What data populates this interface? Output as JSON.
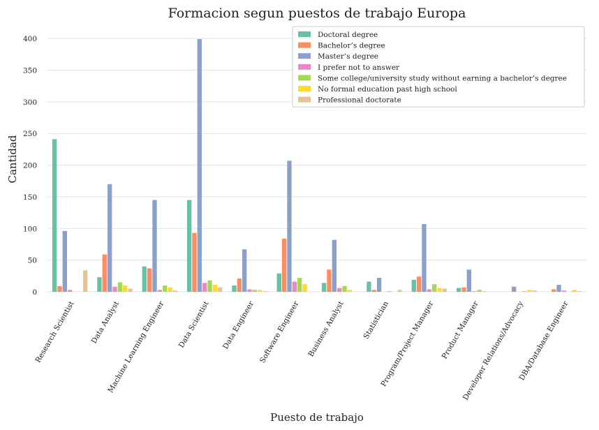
{
  "chart_data": {
    "type": "bar",
    "title": "Formacion segun puestos de trabajo Europa",
    "xlabel": "Puesto de trabajo",
    "ylabel": "Cantidad",
    "ylim": [
      0,
      420
    ],
    "yticks": [
      0,
      50,
      100,
      150,
      200,
      250,
      300,
      350,
      400
    ],
    "grid": true,
    "legend_position": "top-right",
    "categories": [
      "Research Scientist",
      "Data Analyst",
      "Machine Learning Engineer",
      "Data Scientist",
      "Data Engineer",
      "Software Engineer",
      "Business Analyst",
      "Statistician",
      "Program/Project Manager",
      "Product Manager",
      "Developer Relations/Advocacy",
      "DBA/Database Engineer"
    ],
    "series": [
      {
        "name": "Doctoral degree",
        "color": "#66c2a5",
        "values": [
          241,
          23,
          40,
          145,
          10,
          29,
          14,
          16,
          19,
          6,
          0,
          0
        ]
      },
      {
        "name": "Bachelor’s degree",
        "color": "#fc8d62",
        "values": [
          9,
          59,
          37,
          93,
          21,
          84,
          35,
          3,
          24,
          7,
          0,
          4
        ]
      },
      {
        "name": "Master’s degree",
        "color": "#8da0cb",
        "values": [
          96,
          170,
          145,
          399,
          67,
          207,
          82,
          22,
          107,
          35,
          8,
          11
        ]
      },
      {
        "name": "I prefer not to answer",
        "color": "#e78ac3",
        "values": [
          3,
          8,
          3,
          14,
          4,
          16,
          6,
          0,
          4,
          1,
          0,
          2
        ]
      },
      {
        "name": "Some college/university study without earning a bachelor’s degree",
        "color": "#a6d854",
        "values": [
          0,
          15,
          10,
          18,
          3,
          22,
          9,
          1,
          12,
          3,
          1,
          0
        ]
      },
      {
        "name": "No formal education past high school",
        "color": "#ffd92f",
        "values": [
          0,
          10,
          7,
          11,
          3,
          12,
          3,
          0,
          6,
          1,
          3,
          3
        ]
      },
      {
        "name": "Professional doctorate",
        "color": "#e5c494",
        "values": [
          34,
          5,
          2,
          7,
          1,
          0,
          0,
          3,
          5,
          0,
          2,
          1
        ]
      }
    ]
  }
}
